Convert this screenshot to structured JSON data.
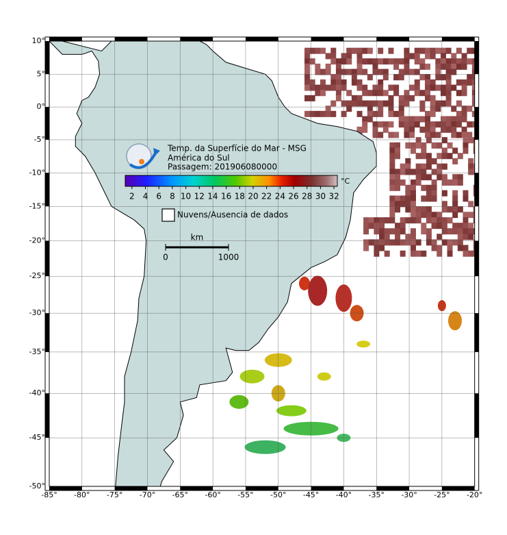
{
  "map": {
    "lonlim": [
      -85,
      -20
    ],
    "latlim": [
      10,
      -50
    ],
    "lonticks": [
      {
        "value": -85,
        "label": "-85°"
      },
      {
        "value": -80,
        "label": "-80°"
      },
      {
        "value": -75,
        "label": "-75°"
      },
      {
        "value": -70,
        "label": "-70°"
      },
      {
        "value": -65,
        "label": "-65°"
      },
      {
        "value": -60,
        "label": "-60°"
      },
      {
        "value": -55,
        "label": "-55°"
      },
      {
        "value": -50,
        "label": "-50°"
      },
      {
        "value": -45,
        "label": "-45°"
      },
      {
        "value": -40,
        "label": "-40°"
      },
      {
        "value": -35,
        "label": "-35°"
      },
      {
        "value": -30,
        "label": "-30°"
      },
      {
        "value": -25,
        "label": "-25°"
      },
      {
        "value": -20,
        "label": "-20°"
      }
    ],
    "latticks": [
      {
        "value": 10,
        "label": "10°"
      },
      {
        "value": 5,
        "label": "5°"
      },
      {
        "value": 0,
        "label": "0°"
      },
      {
        "value": -5,
        "label": "-5°"
      },
      {
        "value": -10,
        "label": "-10°"
      },
      {
        "value": -15,
        "label": "-15°"
      },
      {
        "value": -20,
        "label": "-20°"
      },
      {
        "value": -25,
        "label": "-25°"
      },
      {
        "value": -30,
        "label": "-30°"
      },
      {
        "value": -35,
        "label": "-35°"
      },
      {
        "value": -40,
        "label": "-40°"
      },
      {
        "value": -45,
        "label": "-45°"
      },
      {
        "value": -50,
        "label": "-50°"
      }
    ],
    "grid": true
  },
  "legend": {
    "title": "Temp. da Superfície do Mar - MSG",
    "region": "América do Sul",
    "pass": "Passagem: 201906080000",
    "unit": "°C",
    "colorbar": {
      "range": [
        1,
        32.5
      ],
      "ticks": [
        2,
        4,
        6,
        8,
        10,
        12,
        14,
        16,
        18,
        20,
        22,
        24,
        26,
        28,
        30,
        32
      ]
    },
    "nodata": "Nuvens/Ausencia de dados"
  },
  "scale": {
    "unit": "km",
    "ticks": [
      0,
      1000
    ]
  }
}
